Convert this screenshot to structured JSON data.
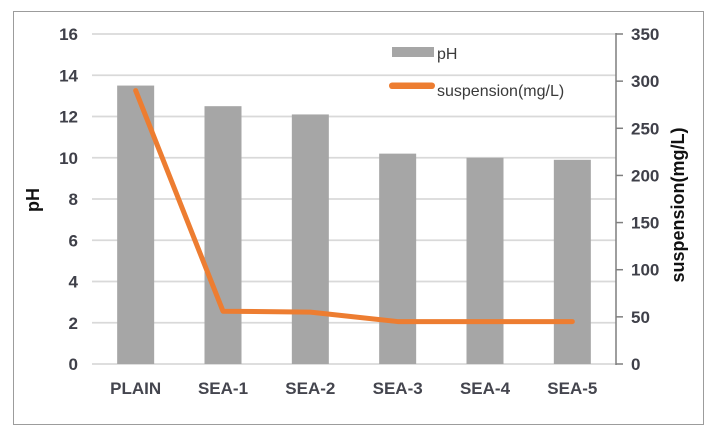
{
  "chart_data": {
    "type": "bar",
    "subtype": "combo-bar-line",
    "categories": [
      "PLAIN",
      "SEA-1",
      "SEA-2",
      "SEA-3",
      "SEA-4",
      "SEA-5"
    ],
    "series": [
      {
        "name": "pH",
        "type": "bar",
        "axis": "left",
        "color": "#a6a6a6",
        "values": [
          13.5,
          12.5,
          12.1,
          10.2,
          10.0,
          9.9
        ]
      },
      {
        "name": "suspension(mg/L)",
        "type": "line",
        "axis": "right",
        "color": "#ed7d31",
        "values": [
          290,
          56,
          55,
          45,
          45,
          45
        ]
      }
    ],
    "left_axis": {
      "title": "pH",
      "min": 0,
      "max": 16,
      "step": 2,
      "tick_labels": [
        "0",
        "2",
        "4",
        "6",
        "8",
        "10",
        "12",
        "14",
        "16"
      ]
    },
    "right_axis": {
      "title": "suspension(mg/L)",
      "min": 0,
      "max": 350,
      "step": 50,
      "tick_labels": [
        "0",
        "50",
        "100",
        "150",
        "200",
        "250",
        "300",
        "350"
      ]
    },
    "grid": true,
    "legend_position": "top-center",
    "colors": {
      "bar": "#a6a6a6",
      "line": "#ed7d31",
      "gridline": "#d9d9d9",
      "right_spine": "#7f7f7f",
      "border": "#9c9c9c",
      "background": "#ffffff"
    }
  }
}
